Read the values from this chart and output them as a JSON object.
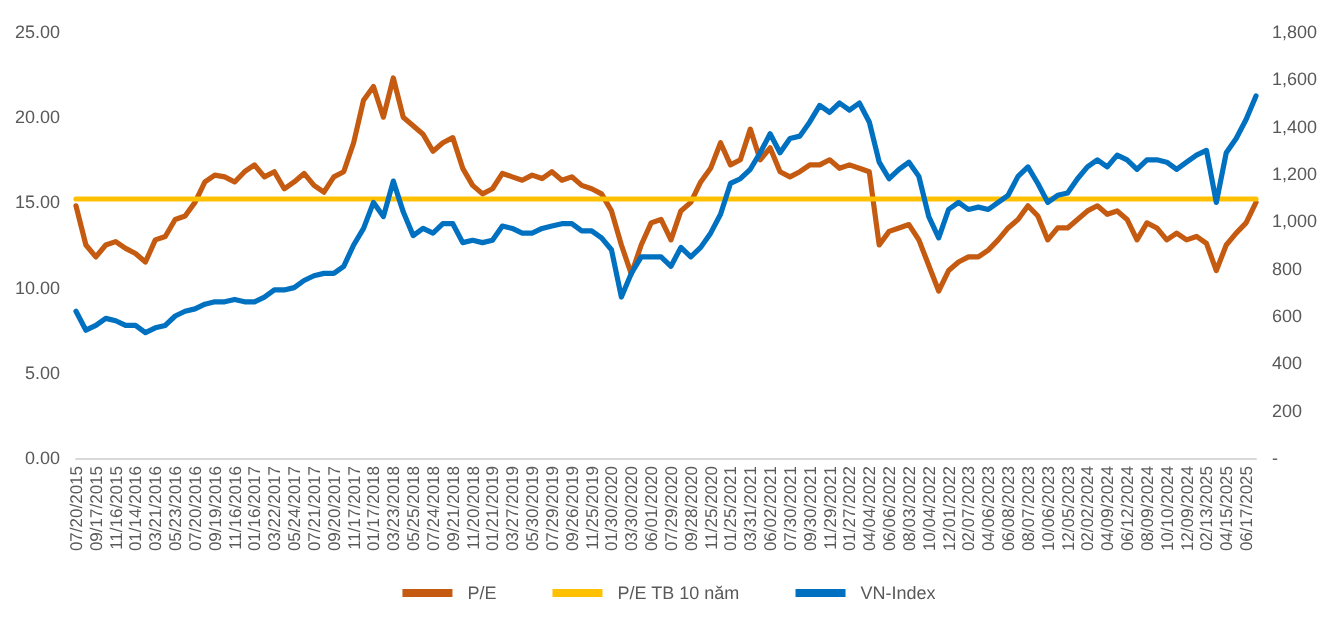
{
  "chart_data": {
    "type": "line",
    "categories": [
      "07/20/2015",
      null,
      "09/17/2015",
      null,
      "11/16/2015",
      null,
      "01/14/2016",
      null,
      "03/21/2016",
      null,
      "05/23/2016",
      null,
      "07/20/2016",
      null,
      "09/19/2016",
      null,
      "11/16/2016",
      null,
      "01/16/2017",
      null,
      "03/22/2017",
      null,
      "05/24/2017",
      null,
      "07/21/2017",
      null,
      "09/20/2017",
      null,
      "11/17/2017",
      null,
      "01/17/2018",
      null,
      "03/23/2018",
      null,
      "05/25/2018",
      null,
      "07/24/2018",
      null,
      "09/21/2018",
      null,
      "11/20/2018",
      null,
      "01/21/2019",
      null,
      "03/27/2019",
      null,
      "05/30/2019",
      null,
      "07/29/2019",
      null,
      "09/26/2019",
      null,
      "11/25/2019",
      null,
      "01/30/2020",
      null,
      "03/30/2020",
      null,
      "06/01/2020",
      null,
      "07/29/2020",
      null,
      "09/28/2020",
      null,
      "11/25/2020",
      null,
      "01/25/2021",
      null,
      "03/31/2021",
      null,
      "06/02/2021",
      null,
      "07/30/2021",
      null,
      "09/30/2021",
      null,
      "11/29/2021",
      null,
      "01/27/2022",
      null,
      "04/04/2022",
      null,
      "06/06/2022",
      null,
      "08/03/2022",
      null,
      "10/04/2022",
      null,
      "12/01/2022",
      null,
      "02/07/2023",
      null,
      "04/06/2023",
      null,
      "06/08/2023",
      null,
      "08/07/2023",
      null,
      "10/06/2023",
      null,
      "12/05/2023",
      null,
      "02/02/2024",
      null,
      "04/09/2024",
      null,
      "06/12/2024",
      null,
      "08/09/2024",
      null,
      "10/10/2024",
      null,
      "12/09/2024",
      null,
      "02/13/2025",
      null,
      "04/15/2025",
      null,
      "06/17/2025",
      null
    ],
    "series": [
      {
        "name": "P/E",
        "color": "#c55a11",
        "values": [
          14.8,
          12.5,
          11.8,
          12.5,
          12.7,
          12.3,
          12.0,
          11.5,
          12.8,
          13.0,
          14.0,
          14.2,
          15.0,
          16.2,
          16.6,
          16.5,
          16.2,
          16.8,
          17.2,
          16.5,
          16.8,
          15.8,
          16.2,
          16.7,
          16.0,
          15.6,
          16.5,
          16.8,
          18.5,
          21.0,
          21.8,
          20.0,
          22.3,
          20.0,
          19.5,
          19.0,
          18.0,
          18.5,
          18.8,
          17.0,
          16.0,
          15.5,
          15.8,
          16.7,
          16.5,
          16.3,
          16.6,
          16.4,
          16.8,
          16.3,
          16.5,
          16.0,
          15.8,
          15.5,
          14.5,
          12.5,
          10.8,
          12.5,
          13.8,
          14.0,
          12.8,
          14.5,
          15.0,
          16.2,
          17.0,
          18.5,
          17.2,
          17.5,
          19.3,
          17.5,
          18.2,
          16.8,
          16.5,
          16.8,
          17.2,
          17.2,
          17.5,
          17.0,
          17.2,
          17.0,
          16.8,
          12.5,
          13.3,
          13.5,
          13.7,
          12.8,
          11.3,
          9.8,
          11.0,
          11.5,
          11.8,
          11.8,
          12.2,
          12.8,
          13.5,
          14.0,
          14.8,
          14.2,
          12.8,
          13.5,
          13.5,
          14.0,
          14.5,
          14.8,
          14.3,
          14.5,
          14.0,
          12.8,
          13.8,
          13.5,
          12.8,
          13.2,
          12.8,
          13.0,
          12.6,
          11.0,
          12.5,
          13.2,
          13.8,
          15.0
        ]
      },
      {
        "name": "P/E TB 10 năm",
        "color": "#ffc000",
        "values": [
          15.2,
          15.2,
          15.2,
          15.2,
          15.2,
          15.2,
          15.2,
          15.2,
          15.2,
          15.2,
          15.2,
          15.2,
          15.2,
          15.2,
          15.2,
          15.2,
          15.2,
          15.2,
          15.2,
          15.2,
          15.2,
          15.2,
          15.2,
          15.2,
          15.2,
          15.2,
          15.2,
          15.2,
          15.2,
          15.2,
          15.2,
          15.2,
          15.2,
          15.2,
          15.2,
          15.2,
          15.2,
          15.2,
          15.2,
          15.2,
          15.2,
          15.2,
          15.2,
          15.2,
          15.2,
          15.2,
          15.2,
          15.2,
          15.2,
          15.2,
          15.2,
          15.2,
          15.2,
          15.2,
          15.2,
          15.2,
          15.2,
          15.2,
          15.2,
          15.2,
          15.2,
          15.2,
          15.2,
          15.2,
          15.2,
          15.2,
          15.2,
          15.2,
          15.2,
          15.2,
          15.2,
          15.2,
          15.2,
          15.2,
          15.2,
          15.2,
          15.2,
          15.2,
          15.2,
          15.2,
          15.2,
          15.2,
          15.2,
          15.2,
          15.2,
          15.2,
          15.2,
          15.2,
          15.2,
          15.2,
          15.2,
          15.2,
          15.2,
          15.2,
          15.2,
          15.2,
          15.2,
          15.2,
          15.2,
          15.2,
          15.2,
          15.2,
          15.2,
          15.2,
          15.2,
          15.2,
          15.2,
          15.2,
          15.2,
          15.2,
          15.2,
          15.2,
          15.2,
          15.2,
          15.2,
          15.2,
          15.2,
          15.2,
          15.2,
          15.2
        ]
      },
      {
        "name": "VN-Index",
        "color": "#0070c0",
        "axis": "y2",
        "values": [
          620,
          540,
          560,
          590,
          580,
          560,
          560,
          530,
          550,
          560,
          600,
          620,
          630,
          650,
          660,
          660,
          670,
          660,
          660,
          680,
          710,
          710,
          720,
          750,
          770,
          780,
          780,
          810,
          900,
          970,
          1080,
          1020,
          1170,
          1040,
          940,
          970,
          950,
          990,
          990,
          910,
          920,
          910,
          920,
          980,
          970,
          950,
          950,
          970,
          980,
          990,
          990,
          960,
          960,
          930,
          880,
          680,
          780,
          850,
          850,
          850,
          810,
          890,
          850,
          890,
          950,
          1030,
          1160,
          1180,
          1220,
          1290,
          1370,
          1290,
          1350,
          1360,
          1420,
          1490,
          1460,
          1500,
          1470,
          1500,
          1420,
          1250,
          1180,
          1220,
          1250,
          1190,
          1020,
          930,
          1050,
          1080,
          1050,
          1060,
          1050,
          1080,
          1110,
          1190,
          1230,
          1160,
          1080,
          1110,
          1120,
          1180,
          1230,
          1260,
          1230,
          1280,
          1260,
          1220,
          1260,
          1260,
          1250,
          1220,
          1250,
          1280,
          1300,
          1080,
          1290,
          1350,
          1430,
          1530
        ]
      }
    ],
    "ylim": [
      0,
      25
    ],
    "yticks": [
      {
        "value": 0,
        "label": "0.00"
      },
      {
        "value": 5,
        "label": "5.00"
      },
      {
        "value": 10,
        "label": "10.00"
      },
      {
        "value": 15,
        "label": "15.00"
      },
      {
        "value": 20,
        "label": "20.00"
      },
      {
        "value": 25,
        "label": "25.00"
      }
    ],
    "y2lim": [
      0,
      1800
    ],
    "y2ticks": [
      {
        "value": 0,
        "label": "-"
      },
      {
        "value": 200,
        "label": "200"
      },
      {
        "value": 400,
        "label": "400"
      },
      {
        "value": 600,
        "label": "600"
      },
      {
        "value": 800,
        "label": "800"
      },
      {
        "value": 1000,
        "label": "1,000"
      },
      {
        "value": 1200,
        "label": "1,200"
      },
      {
        "value": 1400,
        "label": "1,400"
      },
      {
        "value": 1600,
        "label": "1,600"
      },
      {
        "value": 1800,
        "label": "1,800"
      }
    ],
    "grid": false,
    "legend": "bottom",
    "marker": "none",
    "line_style": "solid"
  }
}
